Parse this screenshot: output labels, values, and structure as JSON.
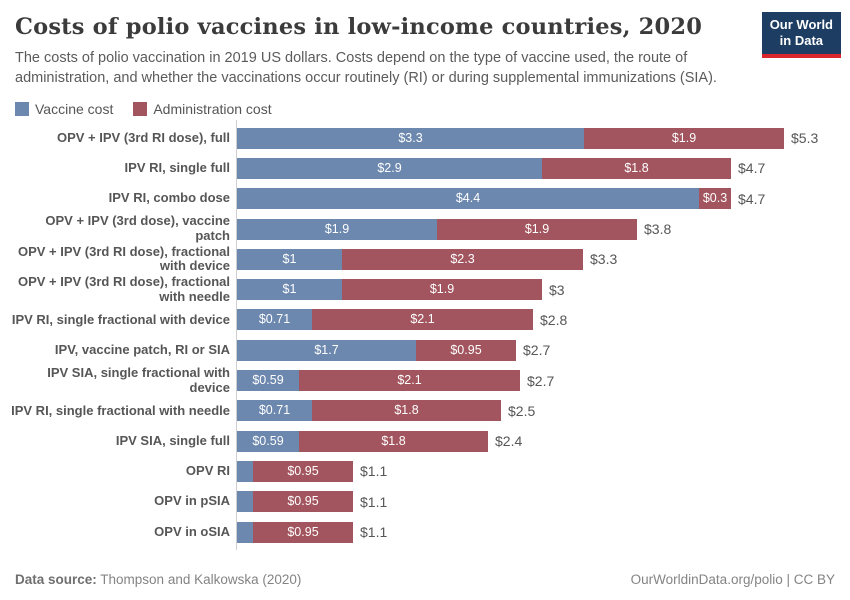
{
  "header": {
    "title": "Costs of polio vaccines in low-income countries, 2020",
    "subtitle": "The costs of polio vaccination in 2019 US dollars. Costs depend on the type of vaccine used, the route of administration, and whether the vaccinations occur routinely (RI) or during supplemental immunizations (SIA).",
    "logo": {
      "line1": "Our World",
      "line2": "in Data",
      "navy": "#1d3d63",
      "red": "#d8262c"
    }
  },
  "legend": [
    {
      "label": "Vaccine cost",
      "color": "#6d88ae"
    },
    {
      "label": "Administration cost",
      "color": "#a2555e"
    }
  ],
  "chart_data": {
    "type": "bar",
    "orientation": "horizontal",
    "stacked": true,
    "title": "Costs of polio vaccines in low-income countries, 2020",
    "unit": "2019 US dollars",
    "xlim": [
      0,
      5.3
    ],
    "grid": false,
    "legend_position": "top-left",
    "categories": [
      "OPV + IPV (3rd RI dose), full",
      "IPV RI, single full",
      "IPV RI, combo dose",
      "OPV + IPV (3rd dose), vaccine patch",
      "OPV + IPV (3rd RI dose), fractional with device",
      "OPV + IPV (3rd RI dose), fractional with needle",
      "IPV RI, single fractional with device",
      "IPV, vaccine patch, RI or SIA",
      "IPV SIA, single fractional with device",
      "IPV RI, single fractional with needle",
      "IPV SIA, single full",
      "OPV RI",
      "OPV in pSIA",
      "OPV in oSIA"
    ],
    "series": [
      {
        "name": "Vaccine cost",
        "color": "#6d88ae",
        "values": [
          3.3,
          2.9,
          4.4,
          1.9,
          1,
          1,
          0.71,
          1.7,
          0.59,
          0.71,
          0.59,
          0.15,
          0.15,
          0.15
        ],
        "labels": [
          "$3.3",
          "$2.9",
          "$4.4",
          "$1.9",
          "$1",
          "$1",
          "$0.71",
          "$1.7",
          "$0.59",
          "$0.71",
          "$0.59",
          "",
          "",
          ""
        ]
      },
      {
        "name": "Administration cost",
        "color": "#a2555e",
        "values": [
          1.9,
          1.8,
          0.3,
          1.9,
          2.3,
          1.9,
          2.1,
          0.95,
          2.1,
          1.8,
          1.8,
          0.95,
          0.95,
          0.95
        ],
        "labels": [
          "$1.9",
          "$1.8",
          "$0.3",
          "$1.9",
          "$2.3",
          "$1.9",
          "$2.1",
          "$0.95",
          "$2.1",
          "$1.8",
          "$1.8",
          "$0.95",
          "$0.95",
          "$0.95"
        ]
      }
    ],
    "totals": [
      "$5.3",
      "$4.7",
      "$4.7",
      "$3.8",
      "$3.3",
      "$3",
      "$2.8",
      "$2.7",
      "$2.7",
      "$2.5",
      "$2.4",
      "$1.1",
      "$1.1",
      "$1.1"
    ]
  },
  "footer": {
    "source_bold": "Data source:",
    "source_rest": " Thompson and Kalkowska (2020)",
    "credit": "OurWorldinData.org/polio | CC BY"
  }
}
